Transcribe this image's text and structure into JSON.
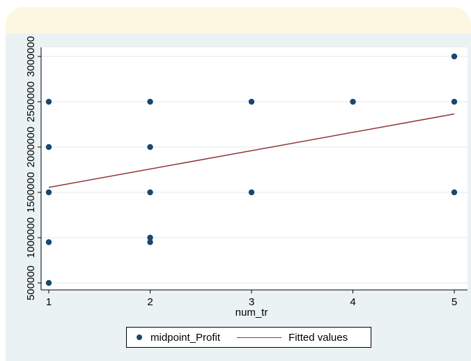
{
  "chart_data": {
    "type": "scatter",
    "title": "",
    "xlabel": "num_tr",
    "ylabel": "",
    "xlim": [
      1,
      5
    ],
    "ylim": [
      500000,
      3000000
    ],
    "x_ticks": [
      1,
      2,
      3,
      4,
      5
    ],
    "y_ticks": [
      500000,
      1000000,
      1500000,
      2000000,
      2500000,
      3000000
    ],
    "x_tick_labels": [
      "1",
      "2",
      "3",
      "4",
      "5"
    ],
    "y_tick_labels": [
      "500000",
      "1000000",
      "1500000",
      "2000000",
      "2500000",
      "3000000"
    ],
    "grid": true,
    "legend_position": "bottom",
    "series": [
      {
        "name": "midpoint_Profit",
        "kind": "scatter",
        "color": "#1a476f",
        "points": [
          [
            1,
            500000
          ],
          [
            1,
            950000
          ],
          [
            1,
            1500000
          ],
          [
            1,
            2000000
          ],
          [
            1,
            2500000
          ],
          [
            2,
            950000
          ],
          [
            2,
            1000000
          ],
          [
            2,
            1500000
          ],
          [
            2,
            2000000
          ],
          [
            2,
            2500000
          ],
          [
            3,
            1500000
          ],
          [
            3,
            2500000
          ],
          [
            4,
            2500000
          ],
          [
            5,
            1500000
          ],
          [
            5,
            2500000
          ],
          [
            5,
            3000000
          ]
        ]
      },
      {
        "name": "Fitted values",
        "kind": "line",
        "color": "#90353b",
        "points": [
          [
            1,
            1555000
          ],
          [
            5,
            2365000
          ]
        ]
      }
    ]
  },
  "legend": {
    "series1_label": "midpoint_Profit",
    "series2_label": "Fitted values"
  }
}
